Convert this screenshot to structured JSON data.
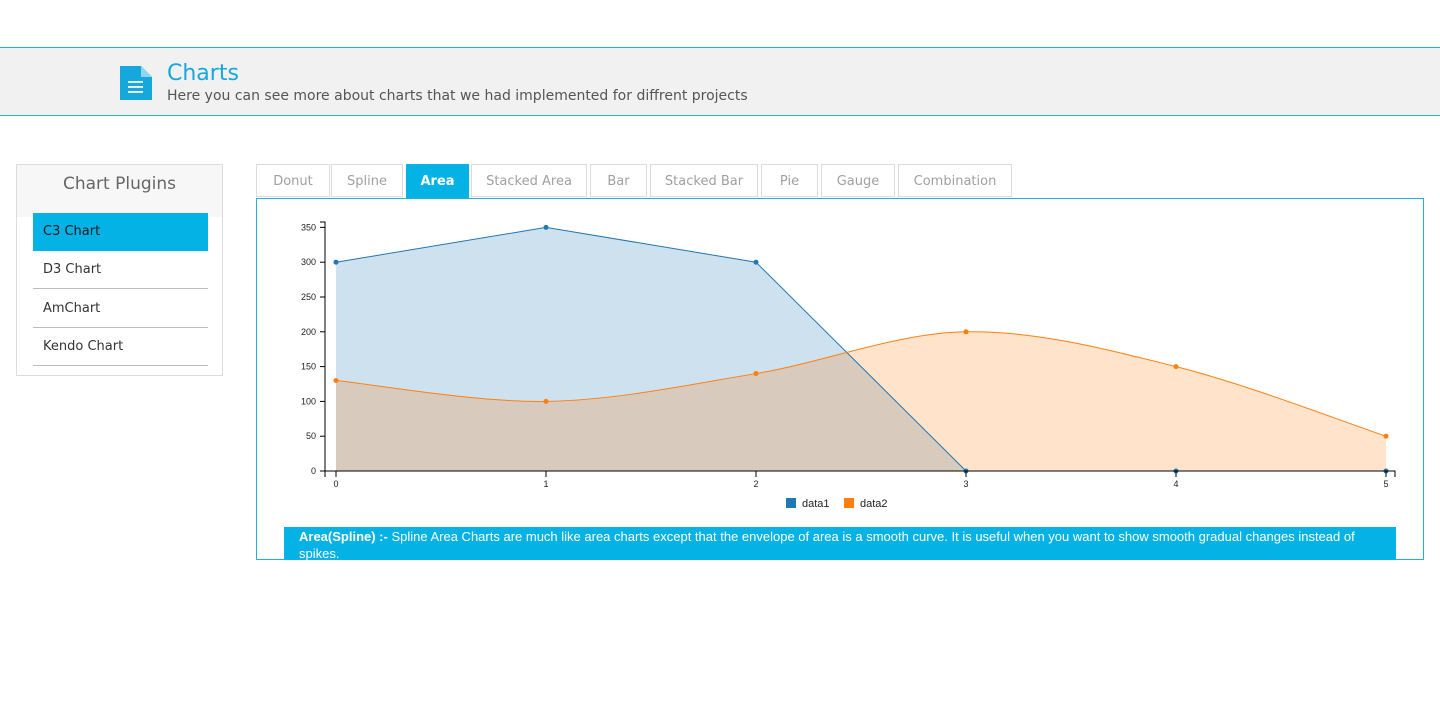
{
  "header": {
    "title": "Charts",
    "subtitle": "Here you can see more about charts that we had implemented for diffrent projects",
    "icon": "document-icon",
    "accent": "#16a7dd"
  },
  "sidebar": {
    "title": "Chart Plugins",
    "items": [
      {
        "label": "C3 Chart",
        "active": true
      },
      {
        "label": "D3 Chart",
        "active": false
      },
      {
        "label": "AmChart",
        "active": false
      },
      {
        "label": "Kendo Chart",
        "active": false
      }
    ]
  },
  "tabs": [
    {
      "label": "Donut"
    },
    {
      "label": "Spline"
    },
    {
      "label": "Area",
      "active": true
    },
    {
      "label": "Stacked Area"
    },
    {
      "label": "Bar"
    },
    {
      "label": "Stacked Bar"
    },
    {
      "label": "Pie"
    },
    {
      "label": "Gauge"
    },
    {
      "label": "Combination"
    }
  ],
  "description": {
    "heading": "Area(Spline) :-",
    "text": " Spline Area Charts are much like area charts except that the envelope of area is a smooth curve. It is useful when you want to show smooth gradual changes instead of spikes."
  },
  "chart_data": {
    "type": "area",
    "x": [
      0,
      1,
      2,
      3,
      4,
      5
    ],
    "series": [
      {
        "name": "data1",
        "values": [
          300,
          350,
          300,
          0,
          0,
          0
        ],
        "color": "#1f77b4",
        "curve": "linear"
      },
      {
        "name": "data2",
        "values": [
          130,
          100,
          140,
          200,
          150,
          50
        ],
        "color": "#ff7f0e",
        "curve": "spline"
      }
    ],
    "ylim": [
      0,
      375
    ],
    "yticks": [
      0,
      50,
      100,
      150,
      200,
      250,
      300,
      350
    ],
    "xticks": [
      0,
      1,
      2,
      3,
      4,
      5
    ],
    "legend": "bottom"
  }
}
